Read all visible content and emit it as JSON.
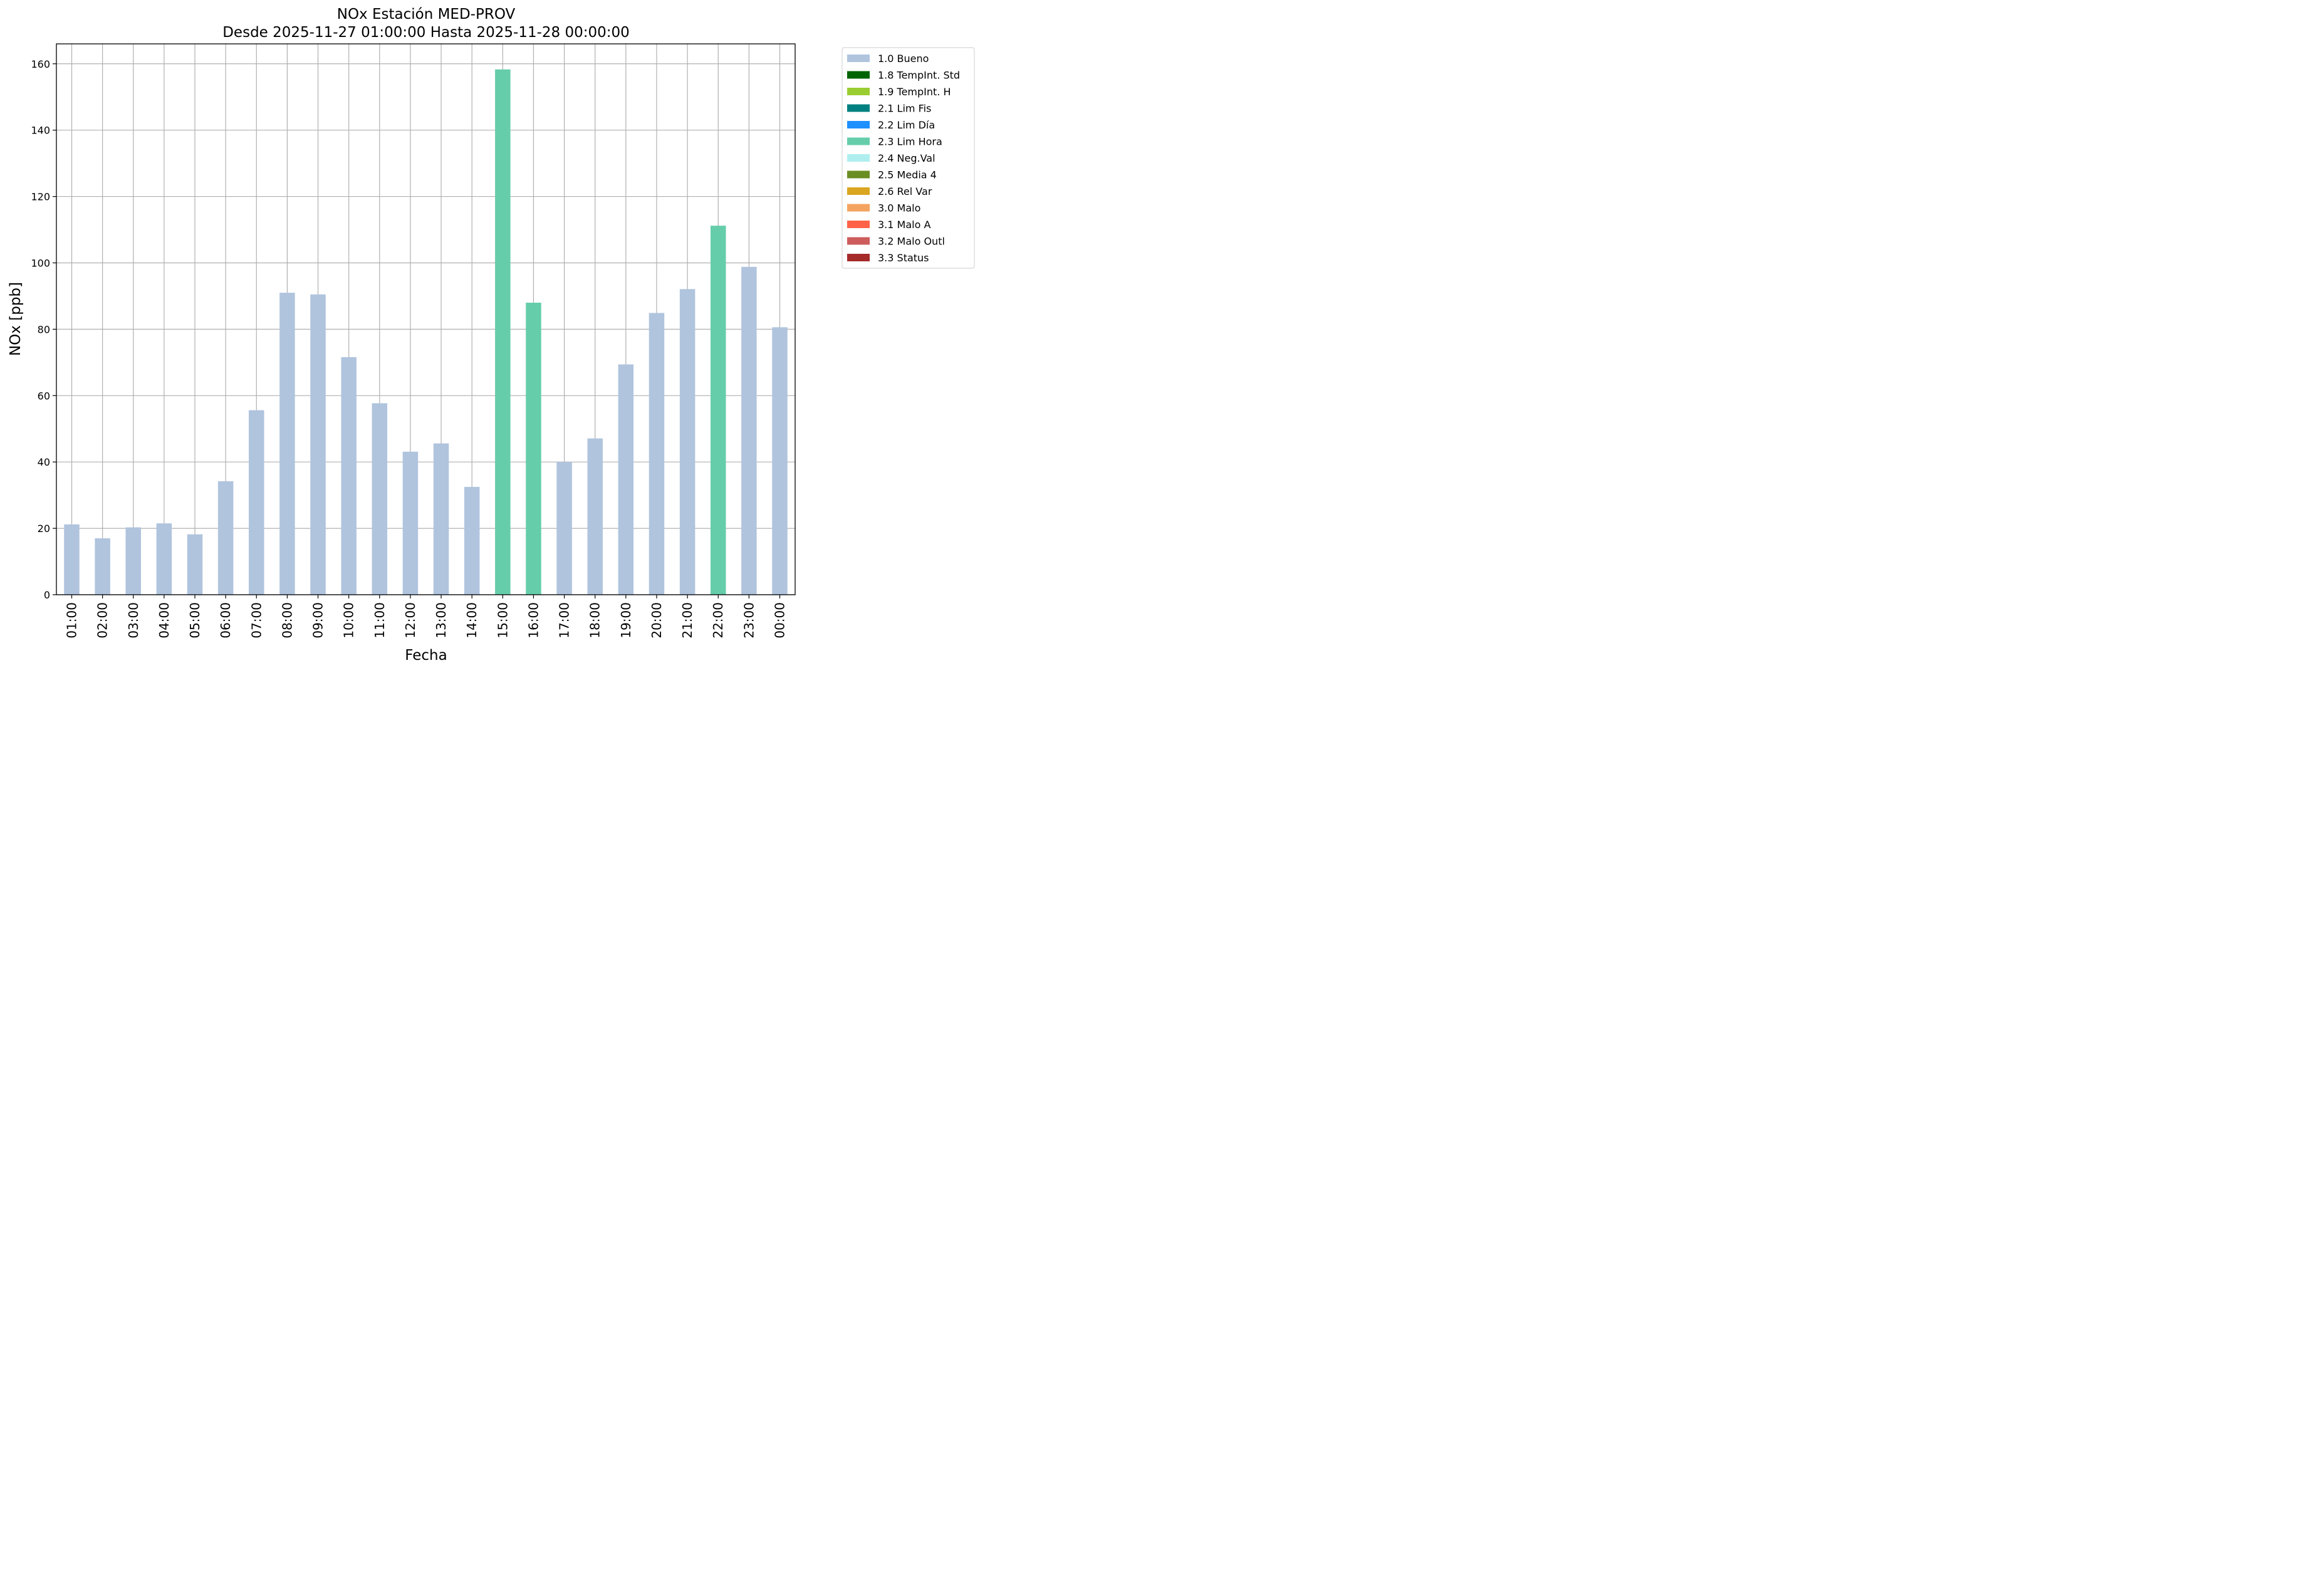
{
  "chart_data": {
    "type": "bar",
    "title": "NOx Estación MED-PROV",
    "subtitle": "Desde 2025-11-27 01:00:00 Hasta 2025-11-28 00:00:00",
    "xlabel": "Fecha",
    "ylabel": "NOx [ppb]",
    "ylim": [
      0,
      166
    ],
    "yticks": [
      0,
      20,
      40,
      60,
      80,
      100,
      120,
      140,
      160
    ],
    "grid": true,
    "legend_position": "outside-top-right",
    "categories": [
      "01:00",
      "02:00",
      "03:00",
      "04:00",
      "05:00",
      "06:00",
      "07:00",
      "08:00",
      "09:00",
      "10:00",
      "11:00",
      "12:00",
      "13:00",
      "14:00",
      "15:00",
      "16:00",
      "17:00",
      "18:00",
      "19:00",
      "20:00",
      "21:00",
      "22:00",
      "23:00",
      "00:00"
    ],
    "values": [
      21.2,
      17.0,
      20.3,
      21.5,
      18.2,
      34.2,
      55.6,
      91.0,
      90.5,
      71.6,
      57.7,
      43.1,
      45.6,
      32.5,
      158.3,
      88.0,
      40.0,
      47.1,
      69.4,
      84.9,
      92.1,
      111.2,
      98.8,
      80.6
    ],
    "flags": [
      "1.0 Bueno",
      "1.0 Bueno",
      "1.0 Bueno",
      "1.0 Bueno",
      "1.0 Bueno",
      "1.0 Bueno",
      "1.0 Bueno",
      "1.0 Bueno",
      "1.0 Bueno",
      "1.0 Bueno",
      "1.0 Bueno",
      "1.0 Bueno",
      "1.0 Bueno",
      "1.0 Bueno",
      "2.3 Lim Hora",
      "2.3 Lim Hora",
      "1.0 Bueno",
      "1.0 Bueno",
      "1.0 Bueno",
      "1.0 Bueno",
      "1.0 Bueno",
      "2.3 Lim Hora",
      "1.0 Bueno",
      "1.0 Bueno"
    ],
    "legend": [
      {
        "label": "1.0 Bueno",
        "color": "#b0c4de"
      },
      {
        "label": "1.8 TempInt. Std",
        "color": "#006400"
      },
      {
        "label": "1.9 TempInt. H",
        "color": "#9acd32"
      },
      {
        "label": "2.1 Lim Fis",
        "color": "#008080"
      },
      {
        "label": "2.2 Lim Día",
        "color": "#1e90ff"
      },
      {
        "label": "2.3 Lim Hora",
        "color": "#66cdaa"
      },
      {
        "label": "2.4 Neg.Val",
        "color": "#afeeee"
      },
      {
        "label": "2.5 Media 4",
        "color": "#6b8e23"
      },
      {
        "label": "2.6 Rel Var",
        "color": "#daa520"
      },
      {
        "label": "3.0 Malo",
        "color": "#f4a460"
      },
      {
        "label": "3.1 Malo A",
        "color": "#ff6347"
      },
      {
        "label": "3.2 Malo Outl",
        "color": "#cd5c5c"
      },
      {
        "label": "3.3 Status",
        "color": "#a52a2a"
      }
    ]
  }
}
